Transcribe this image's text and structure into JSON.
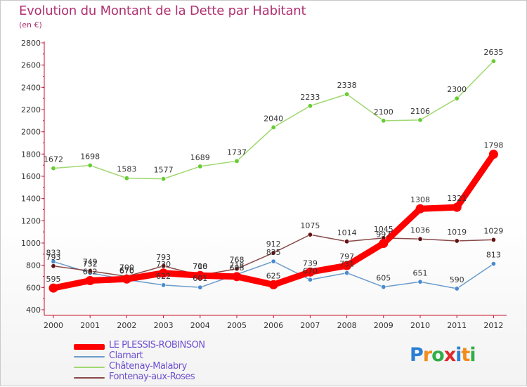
{
  "title": "Evolution du Montant de la Dette par Habitant",
  "subtitle": "(en €)",
  "logo": "Proxiti",
  "chart_data": {
    "type": "line",
    "title": "Evolution du Montant de la Dette par Habitant",
    "subtitle": "(en €)",
    "xlabel": "",
    "ylabel": "",
    "categories": [
      "2000",
      "2001",
      "2002",
      "2003",
      "2004",
      "2005",
      "2006",
      "2007",
      "2008",
      "2009",
      "2010",
      "2011",
      "2012"
    ],
    "ylim": [
      400,
      2800
    ],
    "yticks": [
      400,
      600,
      800,
      1000,
      1200,
      1400,
      1600,
      1800,
      2000,
      2200,
      2400,
      2600,
      2800
    ],
    "grid": false,
    "legend": "bottom-left",
    "series": [
      {
        "name": "LE PLESSIS-ROBINSON",
        "color": "#ff0000",
        "marker": "#ff0000",
        "values": [
          595,
          662,
          676,
          730,
          708,
          698,
          625,
          739,
          797,
          997,
          1308,
          1321,
          1798
        ]
      },
      {
        "name": "Clamart",
        "color": "#6a9ccc",
        "marker": "#4a8ad0",
        "values": [
          833,
          732,
          670,
          622,
          601,
          718,
          835,
          670,
          731,
          605,
          651,
          590,
          813
        ]
      },
      {
        "name": "Châtenay-Malabry",
        "color": "#a0d870",
        "marker": "#66cc33",
        "values": [
          1672,
          1698,
          1583,
          1577,
          1689,
          1737,
          2040,
          2233,
          2338,
          2100,
          2106,
          2300,
          2635
        ]
      },
      {
        "name": "Fontenay-aux-Roses",
        "color": "#8a4a4a",
        "marker": "#661111",
        "values": [
          793,
          749,
          700,
          793,
          710,
          768,
          912,
          1075,
          1014,
          1045,
          1036,
          1019,
          1029
        ]
      }
    ]
  }
}
